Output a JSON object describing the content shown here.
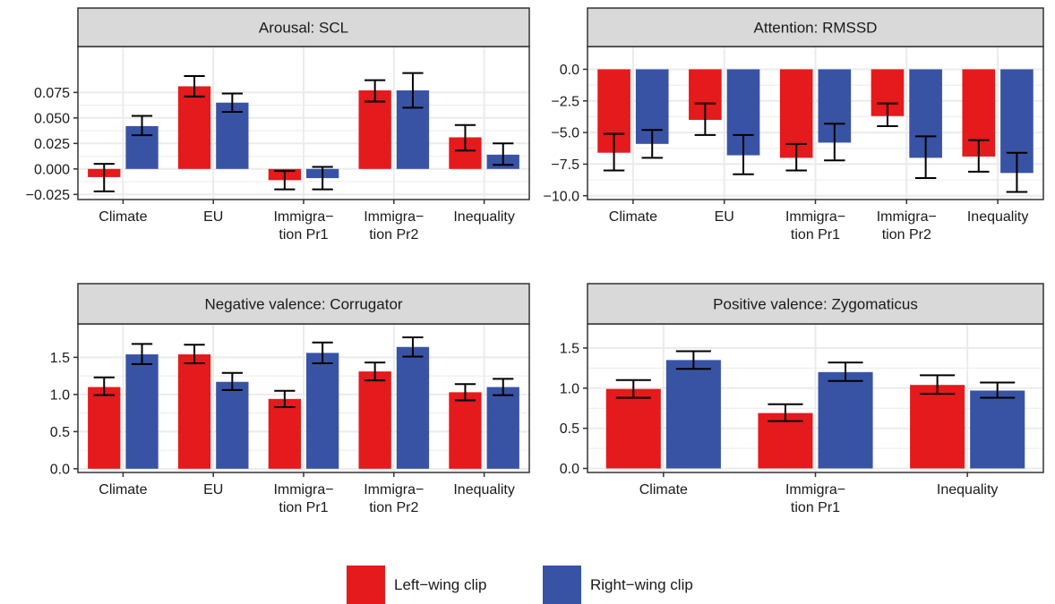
{
  "colors": {
    "left_wing": "#e41a1c",
    "right_wing": "#3953a4",
    "strip_bg": "#d9d9d9",
    "grid": "#ebebeb",
    "border": "#333333",
    "errorbar": "#000000"
  },
  "legend": {
    "items": [
      {
        "label": "Left−wing clip",
        "color": "#e41a1c"
      },
      {
        "label": "Right−wing clip",
        "color": "#3953a4"
      }
    ]
  },
  "chart_data": [
    {
      "type": "bar",
      "title": "Arousal: SCL",
      "categories": [
        "Climate",
        "EU",
        "Immigra−\ntion Pr1",
        "Immigra−\ntion Pr2",
        "Inequality"
      ],
      "series": [
        {
          "name": "Left−wing clip",
          "values": [
            -0.008,
            0.081,
            -0.011,
            0.077,
            0.031
          ],
          "err_low": [
            -0.022,
            0.071,
            -0.02,
            0.066,
            0.018
          ],
          "err_high": [
            0.005,
            0.091,
            -0.002,
            0.087,
            0.043
          ]
        },
        {
          "name": "Right−wing clip",
          "values": [
            0.042,
            0.065,
            -0.009,
            0.077,
            0.014
          ],
          "err_low": [
            0.033,
            0.056,
            -0.02,
            0.06,
            0.004
          ],
          "err_high": [
            0.052,
            0.074,
            0.002,
            0.094,
            0.025
          ]
        }
      ],
      "ylim": [
        -0.03,
        0.12
      ],
      "yticks": [
        -0.025,
        0.0,
        0.025,
        0.05,
        0.075
      ],
      "ytick_labels": [
        "−0.025",
        "0.000",
        "0.025",
        "0.050",
        "0.075"
      ],
      "grid": true
    },
    {
      "type": "bar",
      "title": "Attention: RMSSD",
      "categories": [
        "Climate",
        "EU",
        "Immigra−\ntion Pr1",
        "Immigra−\ntion Pr2",
        "Inequality"
      ],
      "series": [
        {
          "name": "Left−wing clip",
          "values": [
            -6.6,
            -4.0,
            -7.0,
            -3.7,
            -6.9
          ],
          "err_low": [
            -8.0,
            -5.2,
            -8.0,
            -4.5,
            -8.1
          ],
          "err_high": [
            -5.1,
            -2.7,
            -5.9,
            -2.7,
            -5.6
          ]
        },
        {
          "name": "Right−wing clip",
          "values": [
            -5.9,
            -6.8,
            -5.8,
            -7.0,
            -8.2
          ],
          "err_low": [
            -7.0,
            -8.3,
            -7.2,
            -8.6,
            -9.7
          ],
          "err_high": [
            -4.8,
            -5.2,
            -4.3,
            -5.3,
            -6.6
          ]
        }
      ],
      "ylim": [
        -10.3,
        1.8
      ],
      "yticks": [
        -10.0,
        -7.5,
        -5.0,
        -2.5,
        0.0
      ],
      "ytick_labels": [
        "−10.0",
        "−7.5",
        "−5.0",
        "−2.5",
        "0.0"
      ],
      "grid": true
    },
    {
      "type": "bar",
      "title": "Negative valence: Corrugator",
      "categories": [
        "Climate",
        "EU",
        "Immigra−\ntion Pr1",
        "Immigra−\ntion Pr2",
        "Inequality"
      ],
      "series": [
        {
          "name": "Left−wing clip",
          "values": [
            1.1,
            1.54,
            0.94,
            1.31,
            1.03
          ],
          "err_low": [
            0.99,
            1.42,
            0.83,
            1.19,
            0.92
          ],
          "err_high": [
            1.23,
            1.67,
            1.05,
            1.43,
            1.14
          ]
        },
        {
          "name": "Right−wing clip",
          "values": [
            1.54,
            1.17,
            1.56,
            1.64,
            1.1
          ],
          "err_low": [
            1.41,
            1.06,
            1.42,
            1.51,
            0.99
          ],
          "err_high": [
            1.68,
            1.29,
            1.7,
            1.77,
            1.21
          ]
        }
      ],
      "ylim": [
        -0.05,
        1.95
      ],
      "yticks": [
        0.0,
        0.5,
        1.0,
        1.5
      ],
      "ytick_labels": [
        "0.0",
        "0.5",
        "1.0",
        "1.5"
      ],
      "grid": true
    },
    {
      "type": "bar",
      "title": "Positive valence: Zygomaticus",
      "categories": [
        "Climate",
        "Immigra−\ntion Pr1",
        "Inequality"
      ],
      "series": [
        {
          "name": "Left−wing clip",
          "values": [
            0.99,
            0.69,
            1.04
          ],
          "err_low": [
            0.88,
            0.59,
            0.93
          ],
          "err_high": [
            1.1,
            0.8,
            1.16
          ]
        },
        {
          "name": "Right−wing clip",
          "values": [
            1.35,
            1.2,
            0.97
          ],
          "err_low": [
            1.24,
            1.09,
            0.88
          ],
          "err_high": [
            1.46,
            1.32,
            1.07
          ]
        }
      ],
      "ylim": [
        -0.05,
        1.8
      ],
      "yticks": [
        0.0,
        0.5,
        1.0,
        1.5
      ],
      "ytick_labels": [
        "0.0",
        "0.5",
        "1.0",
        "1.5"
      ],
      "grid": true
    }
  ]
}
